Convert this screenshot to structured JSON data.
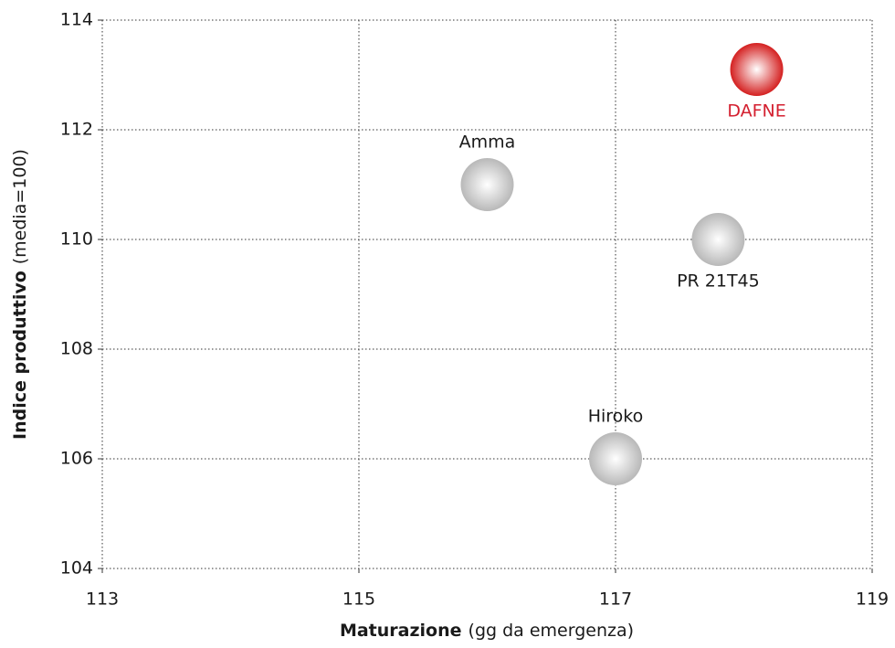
{
  "chart_data": {
    "type": "scatter",
    "xlabel": {
      "bold": "Maturazione",
      "rest": "(gg da emergenza)"
    },
    "ylabel": {
      "bold": "Indice produttivo",
      "rest": "(media=100)"
    },
    "points": {
      "labels": [
        "DAFNE",
        "Amma",
        "PR 21T45",
        "Hiroko"
      ],
      "x": [
        118.1,
        116.0,
        117.8,
        117.0
      ],
      "y": [
        113.1,
        111.0,
        110.0,
        106.0
      ],
      "colors": [
        "#d42020",
        "#b8b8b8",
        "#b8b8b8",
        "#b8b8b8"
      ],
      "label_colors": [
        "#d42030",
        "#1a1a1a",
        "#1a1a1a",
        "#1a1a1a"
      ],
      "label_positions": [
        "below",
        "above",
        "below",
        "above"
      ]
    },
    "xlim": [
      113,
      119
    ],
    "xticks": [
      113,
      115,
      117,
      119
    ],
    "ylim": [
      104,
      114
    ],
    "yticks": [
      104,
      106,
      108,
      110,
      112,
      114
    ],
    "grid": true
  }
}
